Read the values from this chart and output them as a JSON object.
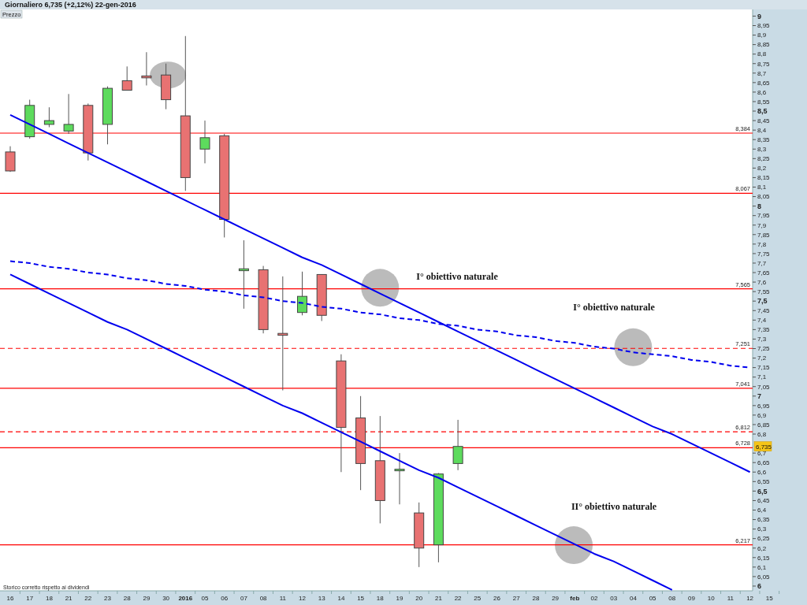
{
  "chart_data": {
    "type": "candlestick",
    "title": "Giornaliero   6,735 (+2,12%)   22-gen-2016",
    "subtitle": "Prezzo",
    "categories": [
      "16",
      "17",
      "18",
      "21",
      "22",
      "23",
      "28",
      "29",
      "30",
      "2016",
      "05",
      "06",
      "07",
      "08",
      "11",
      "12",
      "13",
      "14",
      "15",
      "18",
      "19",
      "20",
      "21",
      "22",
      "25",
      "26",
      "27",
      "28",
      "29",
      "feb",
      "02",
      "03",
      "04",
      "05",
      "08",
      "09",
      "10",
      "11",
      "12",
      "15"
    ],
    "ohlc": [
      [
        8.285,
        8.315,
        8.18,
        8.185
      ],
      [
        8.365,
        8.56,
        8.355,
        8.53
      ],
      [
        8.43,
        8.52,
        8.415,
        8.45
      ],
      [
        8.395,
        8.59,
        8.38,
        8.43
      ],
      [
        8.53,
        8.54,
        8.24,
        8.28
      ],
      [
        8.43,
        8.63,
        8.325,
        8.62
      ],
      [
        8.66,
        8.735,
        8.61,
        8.61
      ],
      [
        8.685,
        8.81,
        8.635,
        8.675
      ],
      [
        8.69,
        8.75,
        8.51,
        8.56
      ],
      [
        8.475,
        8.895,
        8.08,
        8.15
      ],
      [
        8.3,
        8.45,
        8.225,
        8.36
      ],
      [
        8.37,
        8.38,
        7.835,
        7.93
      ],
      [
        7.66,
        7.82,
        7.46,
        7.67
      ],
      [
        7.665,
        7.685,
        7.33,
        7.35
      ],
      [
        7.33,
        7.63,
        7.03,
        7.32
      ],
      [
        7.44,
        7.655,
        7.425,
        7.525
      ],
      [
        7.64,
        7.64,
        7.395,
        7.425
      ],
      [
        7.185,
        7.22,
        6.6,
        6.835
      ],
      [
        6.885,
        7.0,
        6.505,
        6.645
      ],
      [
        6.66,
        6.895,
        6.33,
        6.45
      ],
      [
        6.61,
        6.7,
        6.43,
        6.615
      ],
      [
        6.385,
        6.44,
        6.1,
        6.2
      ],
      [
        6.217,
        6.595,
        6.125,
        6.59
      ],
      [
        6.645,
        6.875,
        6.61,
        6.735
      ],
      null,
      null,
      null,
      null,
      null,
      null,
      null,
      null,
      null,
      null,
      null,
      null,
      null,
      null,
      null,
      null
    ],
    "colors": [
      "#e87272",
      "#5ddb5d",
      "#5ddb5d",
      "#5ddb5d",
      "#e87272",
      "#5ddb5d",
      "#e87272",
      "#e87272",
      "#e87272",
      "#e87272",
      "#5ddb5d",
      "#e87272",
      "#5ddb5d",
      "#e87272",
      "#e87272",
      "#5ddb5d",
      "#e87272",
      "#e87272",
      "#e87272",
      "#e87272",
      "#5ddb5d",
      "#e87272",
      "#5ddb5d",
      "#5ddb5d",
      null,
      null,
      null,
      null,
      null,
      null,
      null,
      null,
      null,
      null,
      null,
      null,
      null,
      null,
      null,
      null
    ],
    "series": [
      {
        "type": "line",
        "color": "#0000ee",
        "line_style": "solid",
        "values": [
          8.48,
          8.43,
          8.38,
          8.33,
          8.28,
          8.23,
          8.18,
          8.13,
          8.08,
          8.03,
          7.98,
          7.93,
          7.88,
          7.83,
          7.78,
          7.73,
          7.69,
          7.64,
          7.59,
          7.54,
          7.49,
          7.44,
          7.39,
          7.34,
          7.29,
          7.24,
          7.19,
          7.14,
          7.09,
          7.04,
          6.99,
          6.94,
          6.89,
          6.84,
          6.8,
          6.75,
          6.7,
          6.65,
          6.6,
          null
        ]
      },
      {
        "type": "line",
        "color": "#0000ee",
        "line_style": "solid",
        "values": [
          7.64,
          7.59,
          7.54,
          7.49,
          7.44,
          7.39,
          7.35,
          7.3,
          7.25,
          7.2,
          7.15,
          7.1,
          7.05,
          7.0,
          6.95,
          6.91,
          6.86,
          6.81,
          6.76,
          6.71,
          6.66,
          6.61,
          6.57,
          6.52,
          6.47,
          6.42,
          6.37,
          6.32,
          6.27,
          6.22,
          6.17,
          6.13,
          6.08,
          6.03,
          5.98,
          null,
          null,
          null,
          null,
          null
        ]
      },
      {
        "type": "line",
        "color": "#0000ee",
        "line_style": "dashed",
        "values": [
          7.71,
          7.7,
          7.68,
          7.67,
          7.65,
          7.64,
          7.62,
          7.61,
          7.59,
          7.58,
          7.56,
          7.55,
          7.53,
          7.52,
          7.5,
          7.49,
          7.47,
          7.46,
          7.44,
          7.43,
          7.41,
          7.4,
          7.38,
          7.37,
          7.35,
          7.34,
          7.32,
          7.31,
          7.29,
          7.28,
          7.26,
          7.25,
          7.23,
          7.22,
          7.21,
          7.19,
          7.18,
          7.16,
          7.15,
          null
        ]
      }
    ],
    "ref_lines": [
      {
        "axis": "y",
        "value": 8.384,
        "label": "8,384",
        "color": "#ff0000",
        "line_style": "solid"
      },
      {
        "axis": "y",
        "value": 8.067,
        "label": "8,067",
        "color": "#ff0000",
        "line_style": "solid"
      },
      {
        "axis": "y",
        "value": 7.565,
        "label": "7,565",
        "color": "#ff0000",
        "line_style": "solid"
      },
      {
        "axis": "y",
        "value": 7.251,
        "label": "7,251",
        "color": "#ff0000",
        "line_style": "dashed"
      },
      {
        "axis": "y",
        "value": 7.041,
        "label": "7,041",
        "color": "#ff0000",
        "line_style": "solid"
      },
      {
        "axis": "y",
        "value": 6.812,
        "label": "6,812",
        "color": "#ff0000",
        "line_style": "dashed"
      },
      {
        "axis": "y",
        "value": 6.728,
        "label": "6,728",
        "color": "#ff0000",
        "line_style": "solid"
      },
      {
        "axis": "y",
        "value": 6.217,
        "label": "6,217",
        "color": "#ff0000",
        "line_style": "solid"
      }
    ],
    "annotations": [
      "I° obiettivo naturale",
      "I° obiettivo naturale",
      "II° obiettivo naturale",
      "Storico corretto rispetto ai dividendi",
      {
        "text": "6,735",
        "y": 6.735
      }
    ],
    "ylim": [
      5.975,
      9.035
    ],
    "yticks": [
      6,
      {
        "value": 6.05,
        "label": "6,05"
      },
      {
        "value": 6.1,
        "label": "6,1"
      },
      {
        "value": 6.15,
        "label": "6,15"
      },
      {
        "value": 6.2,
        "label": "6,2"
      },
      {
        "value": 6.25,
        "label": "6,25"
      },
      {
        "value": 6.3,
        "label": "6,3"
      },
      {
        "value": 6.35,
        "label": "6,35"
      },
      {
        "value": 6.4,
        "label": "6,4"
      },
      {
        "value": 6.45,
        "label": "6,45"
      },
      {
        "value": 6.5,
        "label": "6,5"
      },
      {
        "value": 6.55,
        "label": "6,55"
      },
      {
        "value": 6.6,
        "label": "6,6"
      },
      {
        "value": 6.65,
        "label": "6,65"
      },
      {
        "value": 6.7,
        "label": "6,7"
      },
      {
        "value": 6.8,
        "label": "6,8"
      },
      {
        "value": 6.85,
        "label": "6,85"
      },
      {
        "value": 6.9,
        "label": "6,9"
      },
      {
        "value": 6.95,
        "label": "6,95"
      },
      7,
      {
        "value": 7.05,
        "label": "7,05"
      },
      {
        "value": 7.1,
        "label": "7,1"
      },
      {
        "value": 7.15,
        "label": "7,15"
      },
      {
        "value": 7.2,
        "label": "7,2"
      },
      {
        "value": 7.25,
        "label": "7,25"
      },
      {
        "value": 7.3,
        "label": "7,3"
      },
      {
        "value": 7.35,
        "label": "7,35"
      },
      {
        "value": 7.4,
        "label": "7,4"
      },
      {
        "value": 7.45,
        "label": "7,45"
      },
      {
        "value": 7.5,
        "label": "7,5"
      },
      {
        "value": 7.55,
        "label": "7,55"
      },
      {
        "value": 7.6,
        "label": "7,6"
      },
      {
        "value": 7.65,
        "label": "7,65"
      },
      {
        "value": 7.7,
        "label": "7,7"
      },
      {
        "value": 7.75,
        "label": "7,75"
      },
      {
        "value": 7.8,
        "label": "7,8"
      },
      {
        "value": 7.85,
        "label": "7,85"
      },
      {
        "value": 7.9,
        "label": "7,9"
      },
      {
        "value": 7.95,
        "label": "7,95"
      },
      8,
      {
        "value": 8.05,
        "label": "8,05"
      },
      {
        "value": 8.1,
        "label": "8,1"
      },
      {
        "value": 8.15,
        "label": "8,15"
      },
      {
        "value": 8.2,
        "label": "8,2"
      },
      {
        "value": 8.25,
        "label": "8,25"
      },
      {
        "value": 8.3,
        "label": "8,3"
      },
      {
        "value": 8.35,
        "label": "8,35"
      },
      {
        "value": 8.4,
        "label": "8,4"
      },
      {
        "value": 8.45,
        "label": "8,45"
      },
      {
        "value": 8.5,
        "label": "8,5"
      },
      {
        "value": 8.55,
        "label": "8,55"
      },
      {
        "value": 8.6,
        "label": "8,6"
      },
      {
        "value": 8.65,
        "label": "8,65"
      },
      {
        "value": 8.7,
        "label": "8,7"
      },
      {
        "value": 8.75,
        "label": "8,75"
      },
      {
        "value": 8.8,
        "label": "8,8"
      },
      {
        "value": 8.85,
        "label": "8,85"
      },
      {
        "value": 8.9,
        "label": "8,9"
      },
      {
        "value": 8.95,
        "label": "8,95"
      },
      9
    ]
  }
}
